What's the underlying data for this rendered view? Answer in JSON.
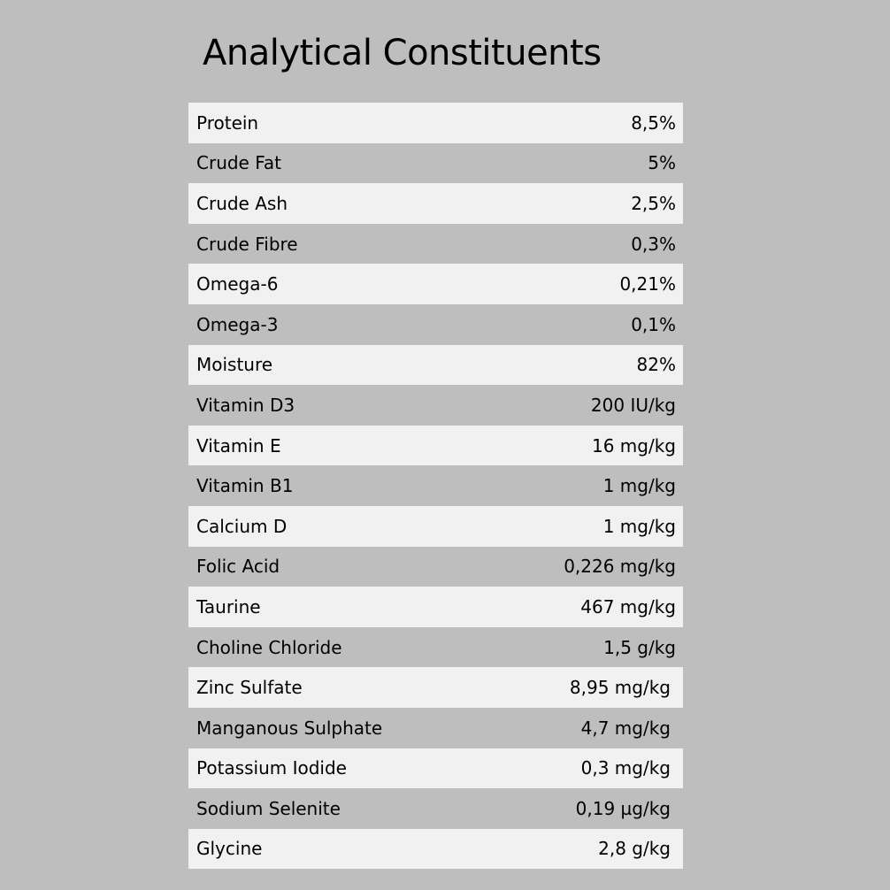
{
  "title": "Analytical Constituents",
  "rows": [
    {
      "label": "Protein",
      "value": "8,5%"
    },
    {
      "label": "Crude Fat",
      "value": "5%"
    },
    {
      "label": "Crude Ash",
      "value": "2,5%"
    },
    {
      "label": "Crude Fibre",
      "value": "0,3%"
    },
    {
      "label": "Omega-6",
      "value": "0,21%"
    },
    {
      "label": "Omega-3",
      "value": "0,1%"
    },
    {
      "label": "Moisture",
      "value": "82%"
    },
    {
      "label": "Vitamin D3",
      "value": "200 IU/kg"
    },
    {
      "label": "Vitamin E",
      "value": "16 mg/kg"
    },
    {
      "label": "Vitamin B1",
      "value": "1 mg/kg"
    },
    {
      "label": "Calcium D",
      "value": "1 mg/kg"
    },
    {
      "label": "Folic Acid",
      "value": "0,226 mg/kg"
    },
    {
      "label": "Taurine",
      "value": "467 mg/kg"
    },
    {
      "label": "Choline Chloride",
      "value": "1,5 g/kg"
    },
    {
      "label": "Zinc Sulfate",
      "value": "8,95 mg/kg"
    },
    {
      "label": "Manganous Sulphate",
      "value": "4,7 mg/kg"
    },
    {
      "label": "Potassium Iodide",
      "value": "0,3 mg/kg"
    },
    {
      "label": "Sodium Selenite",
      "value": "0,19 µg/kg"
    },
    {
      "label": "Glycine",
      "value": "2,8 g/kg"
    }
  ]
}
